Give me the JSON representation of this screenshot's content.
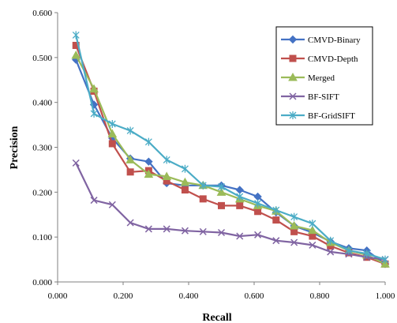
{
  "chart_data": {
    "type": "line",
    "title": "",
    "xlabel": "Recall",
    "ylabel": "Precision",
    "xlim": [
      0.0,
      1.0
    ],
    "ylim": [
      0.0,
      0.6
    ],
    "x_ticks": [
      "0.000",
      "0.200",
      "0.400",
      "0.600",
      "0.800",
      "1.000"
    ],
    "y_ticks": [
      "0.000",
      "0.100",
      "0.200",
      "0.300",
      "0.400",
      "0.500",
      "0.600"
    ],
    "grid": false,
    "legend_position": "top-right",
    "series": [
      {
        "name": "CMVD-Binary",
        "color": "#4472c4",
        "marker": "diamond",
        "x": [
          0.056,
          0.111,
          0.167,
          0.222,
          0.278,
          0.333,
          0.389,
          0.444,
          0.5,
          0.556,
          0.611,
          0.667,
          0.722,
          0.778,
          0.833,
          0.889,
          0.944,
          1.0
        ],
        "y": [
          0.495,
          0.395,
          0.32,
          0.275,
          0.268,
          0.22,
          0.215,
          0.215,
          0.215,
          0.205,
          0.19,
          0.155,
          0.125,
          0.11,
          0.09,
          0.075,
          0.07,
          0.04
        ]
      },
      {
        "name": "CMVD-Depth",
        "color": "#c0504d",
        "marker": "square",
        "x": [
          0.056,
          0.111,
          0.167,
          0.222,
          0.278,
          0.333,
          0.389,
          0.444,
          0.5,
          0.556,
          0.611,
          0.667,
          0.722,
          0.778,
          0.833,
          0.889,
          0.944,
          1.0
        ],
        "y": [
          0.527,
          0.425,
          0.308,
          0.245,
          0.248,
          0.225,
          0.205,
          0.185,
          0.17,
          0.17,
          0.157,
          0.138,
          0.112,
          0.102,
          0.08,
          0.065,
          0.055,
          0.04
        ]
      },
      {
        "name": "Merged",
        "color": "#9bbb59",
        "marker": "triangle",
        "x": [
          0.056,
          0.111,
          0.167,
          0.222,
          0.278,
          0.333,
          0.389,
          0.444,
          0.5,
          0.556,
          0.611,
          0.667,
          0.722,
          0.778,
          0.833,
          0.889,
          0.944,
          1.0
        ],
        "y": [
          0.505,
          0.43,
          0.33,
          0.272,
          0.24,
          0.235,
          0.222,
          0.215,
          0.2,
          0.185,
          0.17,
          0.158,
          0.125,
          0.115,
          0.088,
          0.07,
          0.06,
          0.04
        ]
      },
      {
        "name": "BF-SIFT",
        "color": "#8064a2",
        "marker": "x",
        "x": [
          0.056,
          0.111,
          0.167,
          0.222,
          0.278,
          0.333,
          0.389,
          0.444,
          0.5,
          0.556,
          0.611,
          0.667,
          0.722,
          0.778,
          0.833,
          0.889,
          0.944,
          1.0
        ],
        "y": [
          0.265,
          0.182,
          0.172,
          0.132,
          0.118,
          0.118,
          0.114,
          0.112,
          0.11,
          0.102,
          0.105,
          0.092,
          0.088,
          0.082,
          0.067,
          0.062,
          0.055,
          0.05
        ]
      },
      {
        "name": "BF-GridSIFT",
        "color": "#4bacc6",
        "marker": "star",
        "x": [
          0.056,
          0.111,
          0.167,
          0.222,
          0.278,
          0.333,
          0.389,
          0.444,
          0.5,
          0.556,
          0.611,
          0.667,
          0.722,
          0.778,
          0.833,
          0.889,
          0.944,
          1.0
        ],
        "y": [
          0.55,
          0.375,
          0.352,
          0.337,
          0.312,
          0.272,
          0.252,
          0.215,
          0.212,
          0.19,
          0.175,
          0.16,
          0.145,
          0.13,
          0.092,
          0.07,
          0.063,
          0.05
        ]
      }
    ]
  }
}
